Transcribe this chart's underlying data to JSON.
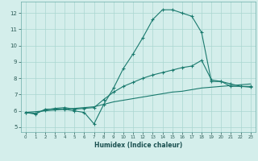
{
  "background_color": "#d4eeeb",
  "grid_color": "#aad6d0",
  "line_color": "#1a7a6e",
  "xlabel": "Humidex (Indice chaleur)",
  "xlim": [
    -0.5,
    23.5
  ],
  "ylim": [
    4.7,
    12.7
  ],
  "xticks": [
    0,
    1,
    2,
    3,
    4,
    5,
    6,
    7,
    8,
    9,
    10,
    11,
    12,
    13,
    14,
    15,
    16,
    17,
    18,
    19,
    20,
    21,
    22,
    23
  ],
  "yticks": [
    5,
    6,
    7,
    8,
    9,
    10,
    11,
    12
  ],
  "curve1_x": [
    0,
    1,
    2,
    3,
    4,
    5,
    6,
    7,
    8,
    9,
    10,
    11,
    12,
    13,
    14,
    15,
    16,
    17,
    18,
    19,
    20,
    21,
    22,
    23
  ],
  "curve1_y": [
    5.9,
    5.8,
    6.1,
    6.1,
    6.1,
    6.0,
    5.9,
    5.2,
    6.4,
    7.4,
    8.6,
    9.5,
    10.5,
    11.6,
    12.2,
    12.2,
    12.0,
    11.8,
    10.8,
    7.8,
    7.8,
    7.5,
    7.5,
    7.5
  ],
  "curve2_x": [
    0,
    1,
    2,
    3,
    4,
    5,
    6,
    7,
    8,
    9,
    10,
    11,
    12,
    13,
    14,
    15,
    16,
    17,
    18,
    19,
    20,
    21,
    22,
    23
  ],
  "curve2_y": [
    5.9,
    5.85,
    6.05,
    6.15,
    6.2,
    6.1,
    6.15,
    6.2,
    6.7,
    7.15,
    7.5,
    7.75,
    8.0,
    8.2,
    8.35,
    8.5,
    8.65,
    8.75,
    9.1,
    7.9,
    7.8,
    7.65,
    7.5,
    7.45
  ],
  "curve3_x": [
    0,
    1,
    2,
    3,
    4,
    5,
    6,
    7,
    8,
    9,
    10,
    11,
    12,
    13,
    14,
    15,
    16,
    17,
    18,
    19,
    20,
    21,
    22,
    23
  ],
  "curve3_y": [
    5.9,
    5.95,
    6.0,
    6.05,
    6.1,
    6.15,
    6.2,
    6.25,
    6.4,
    6.55,
    6.65,
    6.75,
    6.85,
    6.95,
    7.05,
    7.15,
    7.2,
    7.3,
    7.4,
    7.45,
    7.5,
    7.55,
    7.6,
    7.65
  ]
}
